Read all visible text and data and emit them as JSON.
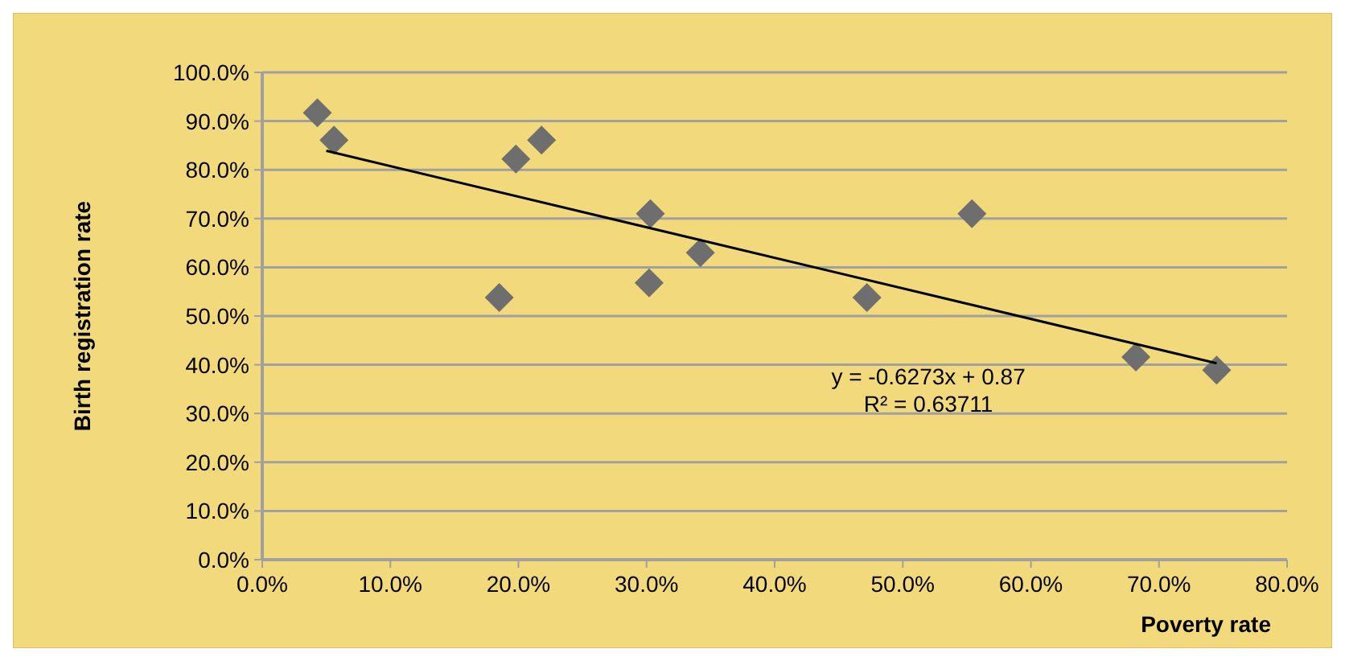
{
  "chart_data": {
    "type": "scatter",
    "xlabel": "Poverty rate",
    "ylabel": "Birth registration rate",
    "marker": "diamond",
    "grid": "y",
    "xlim": [
      0,
      0.8
    ],
    "ylim": [
      0,
      1
    ],
    "xticks": [
      {
        "value": 0,
        "label": "0.0%"
      },
      {
        "value": 0.1,
        "label": "10.0%"
      },
      {
        "value": 0.2,
        "label": "20.0%"
      },
      {
        "value": 0.3,
        "label": "30.0%"
      },
      {
        "value": 0.4,
        "label": "40.0%"
      },
      {
        "value": 0.5,
        "label": "50.0%"
      },
      {
        "value": 0.6,
        "label": "60.0%"
      },
      {
        "value": 0.7,
        "label": "70.0%"
      },
      {
        "value": 0.8,
        "label": "80.0%"
      }
    ],
    "yticks": [
      {
        "value": 0,
        "label": "0.0%"
      },
      {
        "value": 0.1,
        "label": "10.0%"
      },
      {
        "value": 0.2,
        "label": "20.0%"
      },
      {
        "value": 0.3,
        "label": "30.0%"
      },
      {
        "value": 0.4,
        "label": "40.0%"
      },
      {
        "value": 0.5,
        "label": "50.0%"
      },
      {
        "value": 0.6,
        "label": "60.0%"
      },
      {
        "value": 0.7,
        "label": "70.0%"
      },
      {
        "value": 0.8,
        "label": "80.0%"
      },
      {
        "value": 0.9,
        "label": "90.0%"
      },
      {
        "value": 1,
        "label": "100.0%"
      }
    ],
    "series": [
      {
        "color": "#6e6e6e",
        "x": [
          0.043,
          0.056,
          0.198,
          0.218,
          0.185,
          0.303,
          0.302,
          0.342,
          0.472,
          0.554,
          0.682,
          0.745
        ],
        "values": [
          0.917,
          0.861,
          0.822,
          0.861,
          0.538,
          0.71,
          0.568,
          0.63,
          0.538,
          0.71,
          0.416,
          0.389
        ]
      },
      {
        "type": "line",
        "color": "#000000",
        "marker": "none",
        "x": [
          0.05,
          0.745
        ],
        "values": [
          0.839,
          0.403
        ]
      }
    ],
    "annotations": [
      "y = -0.6273x + 0.87",
      "R² = 0.63711"
    ]
  }
}
